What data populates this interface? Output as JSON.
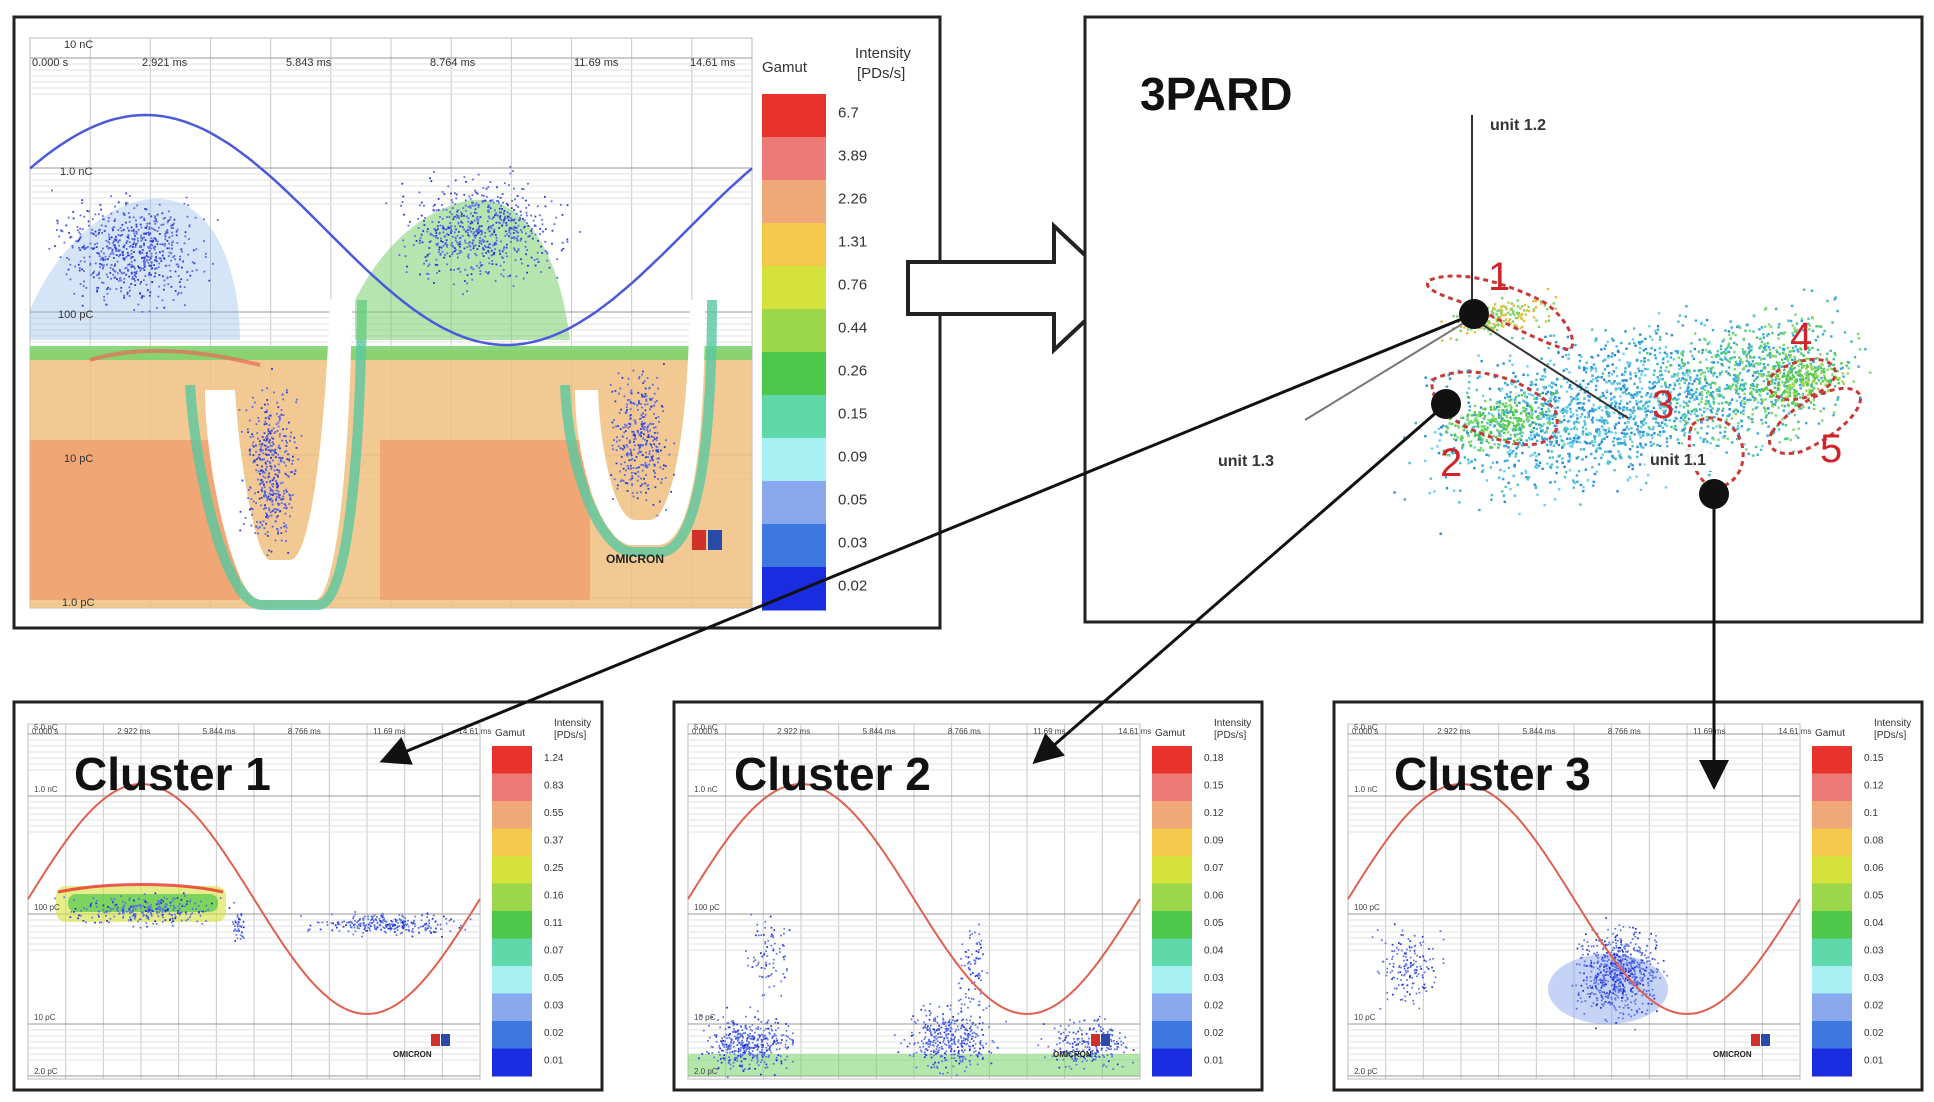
{
  "main_prpd": {
    "x_ticks": [
      "0.000 s",
      "2.921 ms",
      "5.843 ms",
      "8.764 ms",
      "11.69 ms",
      "14.61 ms"
    ],
    "y_ticks": [
      "10 nC",
      "1.0 nC",
      "100 pC",
      "10 pC",
      "1.0 pC"
    ],
    "colorbar_header": "Gamut",
    "colorbar_title_line1": "Intensity",
    "colorbar_title_line2": "[PDs/s]",
    "colorbar_values": [
      "6.7",
      "3.89",
      "2.26",
      "1.31",
      "0.76",
      "0.44",
      "0.26",
      "0.15",
      "0.09",
      "0.05",
      "0.03",
      "0.02"
    ],
    "logo_text": "OMICRON"
  },
  "pard": {
    "title": "3PARD",
    "axis_labels": [
      "unit 1.2",
      "unit 1.3",
      "unit 1.1"
    ],
    "cluster_numbers": [
      "1",
      "2",
      "3",
      "4",
      "5"
    ]
  },
  "clusters": [
    {
      "title": "Cluster 1",
      "x_ticks": [
        "0.000 s",
        "2.922 ms",
        "5.844 ms",
        "8.766 ms",
        "11.69 ms",
        "14.61 ms"
      ],
      "y_ticks": [
        "5.0 nC",
        "1.0 nC",
        "100 pC",
        "10 pC",
        "2.0 pC"
      ],
      "colorbar_header": "Gamut",
      "colorbar_title_line1": "Intensity",
      "colorbar_title_line2": "[PDs/s]",
      "colorbar_values": [
        "1.24",
        "0.83",
        "0.55",
        "0.37",
        "0.25",
        "0.16",
        "0.11",
        "0.07",
        "0.05",
        "0.03",
        "0.02",
        "0.01"
      ],
      "logo_text": "OMICRON"
    },
    {
      "title": "Cluster 2",
      "x_ticks": [
        "0.000 s",
        "2.922 ms",
        "5.844 ms",
        "8.766 ms",
        "11.69 ms",
        "14.61 ms"
      ],
      "y_ticks": [
        "5.0 nC",
        "1.0 nC",
        "100 pC",
        "10 pC",
        "2.0 pC"
      ],
      "colorbar_header": "Gamut",
      "colorbar_title_line1": "Intensity",
      "colorbar_title_line2": "[PDs/s]",
      "colorbar_values": [
        "0.18",
        "0.15",
        "0.12",
        "0.09",
        "0.07",
        "0.06",
        "0.05",
        "0.04",
        "0.03",
        "0.02",
        "0.02",
        "0.01"
      ],
      "logo_text": "OMICRON"
    },
    {
      "title": "Cluster 3",
      "x_ticks": [
        "0.000 s",
        "2.922 ms",
        "5.844 ms",
        "8.766 ms",
        "11.69 ms",
        "14.61 ms"
      ],
      "y_ticks": [
        "5.0 nC",
        "1.0 nC",
        "100 pC",
        "10 pC",
        "2.0 pC"
      ],
      "colorbar_header": "Gamut",
      "colorbar_title_line1": "Intensity",
      "colorbar_title_line2": "[PDs/s]",
      "colorbar_values": [
        "0.15",
        "0.12",
        "0.1",
        "0.08",
        "0.06",
        "0.05",
        "0.04",
        "0.03",
        "0.03",
        "0.02",
        "0.02",
        "0.01"
      ],
      "logo_text": "OMICRON"
    }
  ],
  "colors": {
    "gamut": [
      "#e8322c",
      "#ee7a78",
      "#f0a878",
      "#f4c84a",
      "#d6e23c",
      "#9cd64a",
      "#4ec84a",
      "#5ed8a8",
      "#a8f0f4",
      "#8aa8ee",
      "#3c78e0",
      "#1a2ce0"
    ],
    "sine_main": "#4a5ad8",
    "sine_cluster": "#e06050",
    "cluster_marker": "#d0232a"
  },
  "chart_data": [
    {
      "type": "scatter",
      "name": "main_prpd",
      "x_ticks": [
        "0.000 s",
        "2.921 ms",
        "5.843 ms",
        "8.764 ms",
        "11.69 ms",
        "14.61 ms"
      ],
      "y_ticks": [
        "10 nC",
        "1.0 nC",
        "100 pC",
        "10 pC",
        "1.0 pC"
      ],
      "y_scale": "log",
      "colorbar_values": [
        6.7,
        3.89,
        2.26,
        1.31,
        0.76,
        0.44,
        0.26,
        0.15,
        0.09,
        0.05,
        0.03,
        0.02
      ]
    },
    {
      "type": "scatter",
      "name": "3PARD",
      "axes": [
        "unit 1.1",
        "unit 1.2",
        "unit 1.3"
      ],
      "clusters": [
        "1",
        "2",
        "3",
        "4",
        "5"
      ]
    },
    {
      "type": "scatter",
      "name": "Cluster 1",
      "x_ticks": [
        "0.000 s",
        "2.922 ms",
        "5.844 ms",
        "8.766 ms",
        "11.69 ms",
        "14.61 ms"
      ],
      "y_ticks": [
        "5.0 nC",
        "1.0 nC",
        "100 pC",
        "10 pC",
        "2.0 pC"
      ],
      "y_scale": "log",
      "colorbar_values": [
        1.24,
        0.83,
        0.55,
        0.37,
        0.25,
        0.16,
        0.11,
        0.07,
        0.05,
        0.03,
        0.02,
        0.01
      ]
    },
    {
      "type": "scatter",
      "name": "Cluster 2",
      "x_ticks": [
        "0.000 s",
        "2.922 ms",
        "5.844 ms",
        "8.766 ms",
        "11.69 ms",
        "14.61 ms"
      ],
      "y_ticks": [
        "5.0 nC",
        "1.0 nC",
        "100 pC",
        "10 pC",
        "2.0 pC"
      ],
      "y_scale": "log",
      "colorbar_values": [
        0.18,
        0.15,
        0.12,
        0.09,
        0.07,
        0.06,
        0.05,
        0.04,
        0.03,
        0.02,
        0.02,
        0.01
      ]
    },
    {
      "type": "scatter",
      "name": "Cluster 3",
      "x_ticks": [
        "0.000 s",
        "2.922 ms",
        "5.844 ms",
        "8.766 ms",
        "11.69 ms",
        "14.61 ms"
      ],
      "y_ticks": [
        "5.0 nC",
        "1.0 nC",
        "100 pC",
        "10 pC",
        "2.0 pC"
      ],
      "y_scale": "log",
      "colorbar_values": [
        0.15,
        0.12,
        0.1,
        0.08,
        0.06,
        0.05,
        0.04,
        0.03,
        0.03,
        0.02,
        0.02,
        0.01
      ]
    }
  ]
}
